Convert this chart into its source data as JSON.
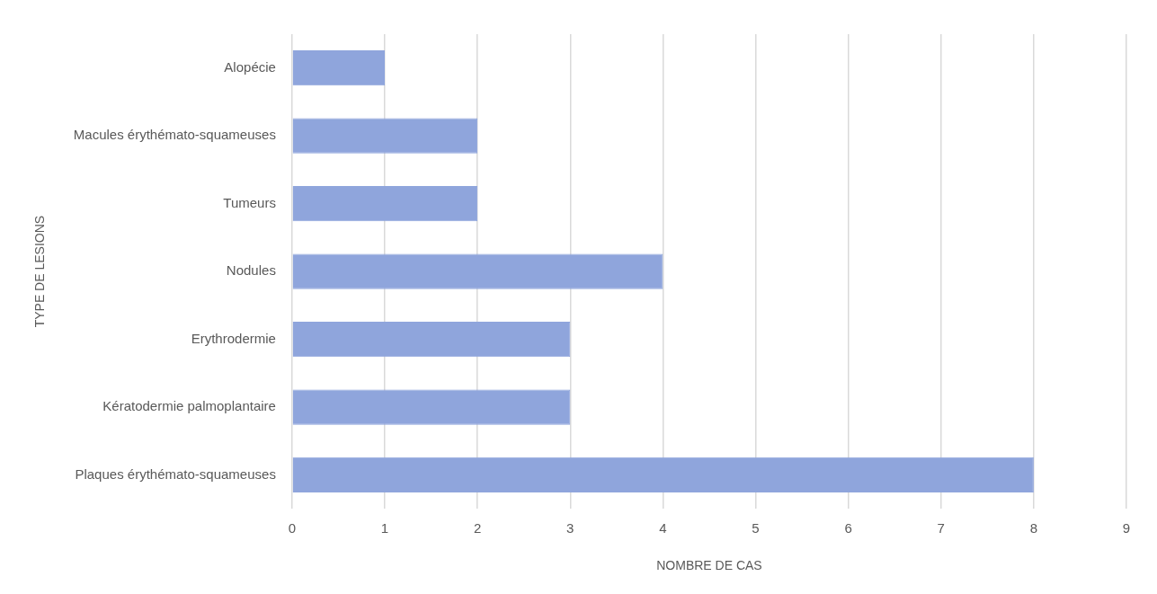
{
  "chart_data": {
    "type": "bar",
    "orientation": "horizontal",
    "xlabel": "NOMBRE DE CAS",
    "ylabel": "TYPE DE LESIONS",
    "categories": [
      "Alopécie",
      "Macules érythémato-squameuses",
      "Tumeurs",
      "Nodules",
      "Erythrodermie",
      "Kératodermie palmoplantaire",
      "Plaques érythémato-squameuses"
    ],
    "values": [
      1,
      2,
      2,
      4,
      3,
      3,
      8
    ],
    "color": "#8fa5dc",
    "xlim": [
      0,
      9
    ],
    "xticks": [
      0,
      1,
      2,
      3,
      4,
      5,
      6,
      7,
      8,
      9
    ],
    "grid": "x",
    "legend": false
  }
}
